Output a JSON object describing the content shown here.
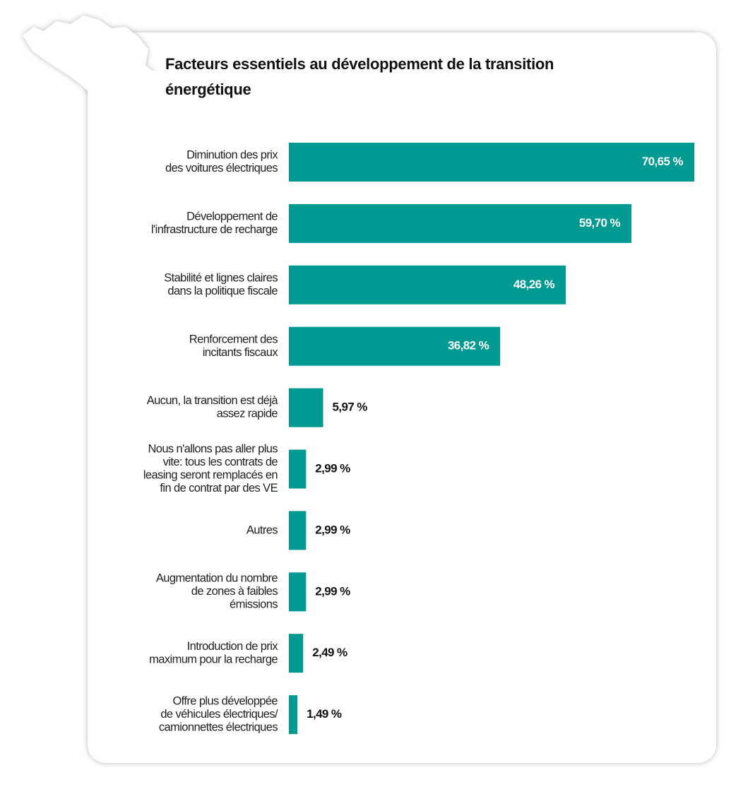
{
  "chart_data": {
    "type": "bar",
    "orientation": "horizontal",
    "title": [
      "Facteurs essentiels au développement de la transition",
      "énergétique"
    ],
    "categories": [
      [
        "Diminution des prix",
        "des voitures électriques"
      ],
      [
        "Développement de",
        "l'infrastructure de recharge"
      ],
      [
        "Stabilité et lignes claires",
        "dans la politique fiscale"
      ],
      [
        "Renforcement des",
        "incitants fiscaux"
      ],
      [
        "Aucun, la transition est déjà",
        "assez rapide"
      ],
      [
        "Nous n'allons pas aller plus",
        "vite: tous les contrats de",
        "leasing seront remplacés en",
        "fin de contrat par des VE"
      ],
      [
        "Autres"
      ],
      [
        "Augmentation du nombre",
        "de zones à faibles",
        "émissions"
      ],
      [
        "Introduction de prix",
        "maximum pour la recharge"
      ],
      [
        "Offre plus développée",
        "de véhicules électriques/",
        "camionnettes électriques"
      ]
    ],
    "values": [
      70.65,
      59.7,
      48.26,
      36.82,
      5.97,
      2.99,
      2.99,
      2.99,
      2.49,
      1.49
    ],
    "value_labels": [
      "70,65 %",
      "59,70 %",
      "48,26 %",
      "36,82 %",
      "5,97 %",
      "2,99 %",
      "2,99 %",
      "2,99 %",
      "2,49 %",
      "1,49 %"
    ],
    "color": "#009a92"
  }
}
